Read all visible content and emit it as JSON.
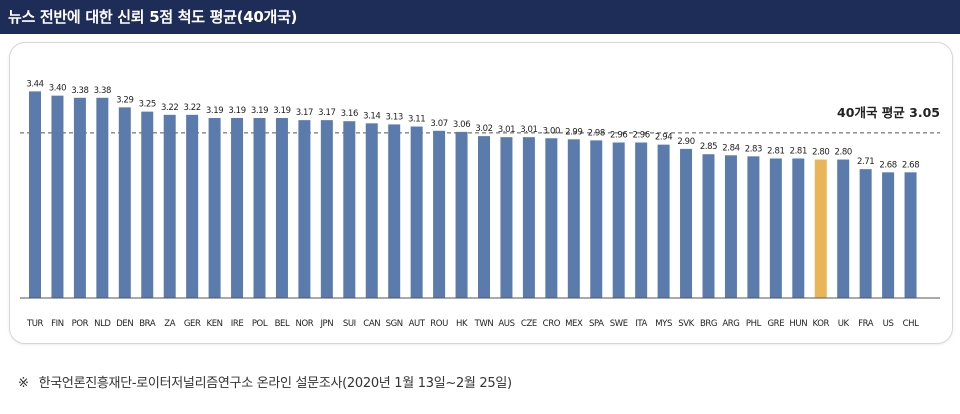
{
  "header": {
    "title": "뉴스 전반에 대한 신뢰 5점 척도 평균(40개국)"
  },
  "chart_data": {
    "type": "bar",
    "title": "뉴스 전반에 대한 신뢰 5점 척도 평균(40개국)",
    "categories": [
      "TUR",
      "FIN",
      "POR",
      "NLD",
      "DEN",
      "BRA",
      "ZA",
      "GER",
      "KEN",
      "IRE",
      "POL",
      "BEL",
      "NOR",
      "JPN",
      "SUI",
      "CAN",
      "SGN",
      "AUT",
      "ROU",
      "HK",
      "TWN",
      "AUS",
      "CZE",
      "CRO",
      "MEX",
      "SPA",
      "SWE",
      "ITA",
      "MYS",
      "SVK",
      "BRG",
      "ARG",
      "PHL",
      "GRE",
      "HUN",
      "KOR",
      "UK",
      "FRA",
      "US",
      "CHL"
    ],
    "values": [
      3.44,
      3.4,
      3.38,
      3.38,
      3.29,
      3.25,
      3.22,
      3.22,
      3.19,
      3.19,
      3.19,
      3.19,
      3.17,
      3.17,
      3.16,
      3.14,
      3.13,
      3.11,
      3.07,
      3.06,
      3.02,
      3.01,
      3.01,
      3.0,
      2.99,
      2.98,
      2.96,
      2.96,
      2.94,
      2.9,
      2.85,
      2.84,
      2.83,
      2.81,
      2.81,
      2.8,
      2.8,
      2.71,
      2.68,
      2.68
    ],
    "value_labels": [
      "3.44",
      "3.40",
      "3.38",
      "3.38",
      "3.29",
      "3.25",
      "3.22",
      "3.22",
      "3.19",
      "3.19",
      "3.19",
      "3.19",
      "3.17",
      "3.17",
      "3.16",
      "3.14",
      "3.13",
      "3.11",
      "3.07",
      "3.06",
      "3.02",
      "3.01",
      "3.01",
      "3.00",
      "2.99",
      "2.98",
      "2.96",
      "2.96",
      "2.94",
      "2.90",
      "2.85",
      "2.84",
      "2.83",
      "2.81",
      "2.81",
      "2.80",
      "2.80",
      "2.71",
      "2.68",
      "2.68"
    ],
    "highlight_category": "KOR",
    "average": {
      "label": "40개국 평균 3.05",
      "value": 3.05
    },
    "ylim": [
      1.5,
      3.5
    ],
    "colors": {
      "bar": "#5b7bad",
      "highlight": "#eab559",
      "average_line": "#555555",
      "axis": "#555555"
    }
  },
  "footnote": {
    "mark": "※",
    "text": "한국언론진흥재단-로이터저널리즘연구소 온라인 설문조사(2020년 1월 13일~2월 25일)"
  }
}
